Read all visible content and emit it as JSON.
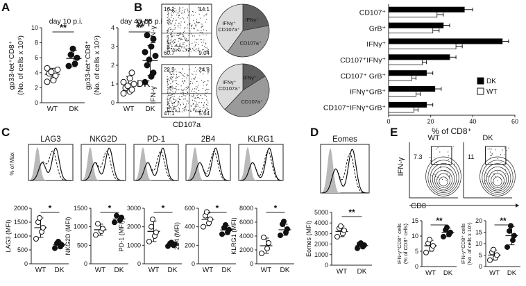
{
  "panel_letters": {
    "A": "A",
    "B": "B",
    "C": "C",
    "D": "D",
    "E": "E"
  },
  "chart_data": [
    {
      "id": "A1",
      "type": "scatter-dot",
      "title": "day 10 p.i.",
      "ylabel": "gp33-tet⁺CD8⁺ (No. of cells x 10⁶)",
      "categories": [
        "WT",
        "DK"
      ],
      "ylim": [
        0,
        10
      ],
      "yticks": [
        0,
        2,
        4,
        6,
        8,
        10
      ],
      "significance": "**",
      "groups": [
        {
          "name": "WT",
          "marker": "open",
          "mean": 3.8,
          "sd": 0.8,
          "values": [
            2.8,
            3.2,
            3.6,
            3.9,
            4.1,
            4.4,
            4.6,
            3.0
          ]
        },
        {
          "name": "DK",
          "marker": "filled",
          "mean": 5.9,
          "sd": 1.1,
          "values": [
            4.9,
            5.2,
            6.0,
            6.4,
            7.2
          ]
        }
      ]
    },
    {
      "id": "A2",
      "type": "scatter-dot",
      "title": "day 45-55 p.i.",
      "ylabel": "gp33-tet⁺CD8⁺ (No. of cells x 10⁵)",
      "categories": [
        "WT",
        "DK"
      ],
      "ylim": [
        0,
        4
      ],
      "yticks": [
        0,
        1,
        2,
        3,
        4
      ],
      "significance": "**",
      "groups": [
        {
          "name": "WT",
          "marker": "open",
          "mean": 1.0,
          "sd": 0.4,
          "values": [
            0.5,
            0.6,
            0.7,
            0.8,
            0.9,
            1.0,
            1.1,
            1.3,
            1.6
          ]
        },
        {
          "name": "DK",
          "marker": "filled",
          "mean": 2.25,
          "sd": 0.8,
          "values": [
            1.1,
            1.4,
            1.6,
            2.0,
            2.3,
            2.5,
            2.7,
            3.0,
            3.4,
            3.6
          ]
        }
      ]
    },
    {
      "id": "B-flow",
      "type": "flow-quadrant",
      "xlabel": "CD107a",
      "ylabel": "IFN-γ",
      "rows": [
        {
          "label": "WT",
          "quadrants": {
            "ul": "16.1",
            "ur": "14.1",
            "ll": "60.7",
            "lr": "9.04"
          }
        },
        {
          "label": "DK",
          "quadrants": {
            "ul": "22.5",
            "ur": "24.8",
            "ll": "47.1",
            "lr": "5.64"
          }
        }
      ]
    },
    {
      "id": "B-pie",
      "type": "pie",
      "rows": [
        {
          "label": "WT",
          "slices": [
            {
              "name": "IFNγ⁺",
              "value": 22,
              "color": "#5f5f5f"
            },
            {
              "name": "CD107a⁺",
              "value": 38,
              "color": "#9a9a9a"
            },
            {
              "name": "IFNγ⁺ CD107a⁺",
              "value": 40,
              "color": "#dcdcdc"
            }
          ]
        },
        {
          "label": "DK",
          "slices": [
            {
              "name": "IFNγ⁺",
              "value": 16,
              "color": "#5f5f5f"
            },
            {
              "name": "CD107a⁺",
              "value": 46,
              "color": "#9a9a9a"
            },
            {
              "name": "IFNγ⁺ CD107a⁺",
              "value": 38,
              "color": "#dcdcdc"
            }
          ]
        }
      ]
    },
    {
      "id": "B-bar",
      "type": "bar",
      "orientation": "horizontal",
      "xlabel": "% of CD8⁺",
      "xlim": [
        0,
        60
      ],
      "xticks": [
        0,
        20,
        40,
        60
      ],
      "categories": [
        "CD107⁺",
        "GrB⁺",
        "IFNγ⁺",
        "CD107⁺IFNγ⁺",
        "CD107⁺ GrB⁺",
        "IFNγ⁺GrB⁺",
        "CD107⁺IFNγ⁺GrB⁺"
      ],
      "series": [
        {
          "name": "DK",
          "color": "#000000",
          "values": [
            36,
            26,
            54,
            29,
            18,
            22,
            18
          ],
          "err": [
            4,
            3,
            3,
            3,
            3,
            3,
            3
          ]
        },
        {
          "name": "WT",
          "color": "#ffffff",
          "values": [
            23,
            21,
            32,
            16,
            11,
            13,
            12
          ],
          "err": [
            3,
            3,
            3,
            2,
            2,
            2,
            2
          ]
        }
      ]
    },
    {
      "id": "C-hist",
      "type": "histogram-overlay",
      "ylabel": "% of Max",
      "panels": [
        "LAG3",
        "NKG2D",
        "PD-1",
        "2B4",
        "KLRG1"
      ]
    },
    {
      "id": "C-LAG3",
      "type": "scatter-dot",
      "ylabel": "LAG3 (MFI)",
      "categories": [
        "WT",
        "DK"
      ],
      "ylim": [
        0,
        2000
      ],
      "yticks": [
        0,
        500,
        1000,
        1500,
        2000
      ],
      "significance": "*",
      "groups": [
        {
          "name": "WT",
          "marker": "open",
          "mean": 1300,
          "sd": 350,
          "values": [
            900,
            1150,
            1300,
            1500,
            1650
          ]
        },
        {
          "name": "DK",
          "marker": "filled",
          "mean": 680,
          "sd": 120,
          "values": [
            560,
            620,
            680,
            740,
            800
          ]
        }
      ]
    },
    {
      "id": "C-NKG2D",
      "type": "scatter-dot",
      "ylabel": "NKG2D (MFI)",
      "categories": [
        "WT",
        "DK"
      ],
      "ylim": [
        0,
        1500
      ],
      "yticks": [
        0,
        500,
        1000,
        1500
      ],
      "significance": "*",
      "groups": [
        {
          "name": "WT",
          "marker": "open",
          "mean": 920,
          "sd": 150,
          "values": [
            780,
            880,
            950,
            1080
          ]
        },
        {
          "name": "DK",
          "marker": "filled",
          "mean": 1210,
          "sd": 90,
          "values": [
            1120,
            1180,
            1250,
            1300
          ]
        }
      ]
    },
    {
      "id": "C-PD1",
      "type": "scatter-dot",
      "ylabel": "PD-1 (MFI)",
      "categories": [
        "WT",
        "DK"
      ],
      "ylim": [
        0,
        3000
      ],
      "yticks": [
        0,
        1000,
        2000,
        3000
      ],
      "significance": "*",
      "groups": [
        {
          "name": "WT",
          "marker": "open",
          "mean": 1750,
          "sd": 550,
          "values": [
            1200,
            1500,
            1700,
            2000,
            2400
          ]
        },
        {
          "name": "DK",
          "marker": "filled",
          "mean": 1050,
          "sd": 100,
          "values": [
            950,
            1000,
            1060,
            1100,
            1150
          ]
        }
      ]
    },
    {
      "id": "C-2B4",
      "type": "scatter-dot",
      "ylabel": "2B4 (MFI)",
      "categories": [
        "WT",
        "DK"
      ],
      "ylim": [
        0,
        600
      ],
      "yticks": [
        0,
        200,
        400,
        600
      ],
      "significance": "*",
      "groups": [
        {
          "name": "WT",
          "marker": "open",
          "mean": 480,
          "sd": 70,
          "values": [
            400,
            440,
            480,
            520,
            560
          ]
        },
        {
          "name": "DK",
          "marker": "filled",
          "mean": 365,
          "sd": 50,
          "values": [
            320,
            340,
            370,
            390,
            420
          ]
        }
      ]
    },
    {
      "id": "C-KLRG1",
      "type": "scatter-dot",
      "ylabel": "KLRG1 (MFI)",
      "categories": [
        "WT",
        "DK"
      ],
      "ylim": [
        0,
        8000
      ],
      "yticks": [
        0,
        2000,
        4000,
        6000,
        8000
      ],
      "significance": "*",
      "groups": [
        {
          "name": "WT",
          "marker": "open",
          "mean": 2600,
          "sd": 1100,
          "values": [
            1500,
            2200,
            3000,
            3800
          ]
        },
        {
          "name": "DK",
          "marker": "filled",
          "mean": 4900,
          "sd": 800,
          "values": [
            4100,
            4500,
            5000,
            5700,
            6100
          ]
        }
      ]
    },
    {
      "id": "D-hist",
      "type": "histogram-overlay",
      "panels": [
        "Eomes"
      ]
    },
    {
      "id": "D-Eomes",
      "type": "scatter-dot",
      "ylabel": "Eomes (MFI)",
      "categories": [
        "WT",
        "DK"
      ],
      "ylim": [
        0,
        5000
      ],
      "yticks": [
        0,
        1000,
        2000,
        3000,
        4000,
        5000
      ],
      "significance": "**",
      "groups": [
        {
          "name": "WT",
          "marker": "open",
          "mean": 3200,
          "sd": 500,
          "values": [
            2700,
            3000,
            3300,
            3500,
            3700
          ]
        },
        {
          "name": "DK",
          "marker": "filled",
          "mean": 1850,
          "sd": 250,
          "values": [
            1600,
            1750,
            1900,
            2000,
            2100
          ]
        }
      ]
    },
    {
      "id": "E-flow",
      "type": "flow-contour",
      "xlabel": "CD8",
      "ylabel": "IFN-γ",
      "panels": [
        {
          "label": "WT",
          "gate": "7.3"
        },
        {
          "label": "DK",
          "gate": "11"
        }
      ]
    },
    {
      "id": "E-pct",
      "type": "scatter-dot",
      "ylabel": "IFN-γ⁺CD8⁺ cells (% of CD8⁺ cells)",
      "categories": [
        "WT",
        "DK"
      ],
      "ylim": [
        0,
        15
      ],
      "yticks": [
        0,
        5,
        10,
        15
      ],
      "significance": "**",
      "groups": [
        {
          "name": "WT",
          "marker": "open",
          "mean": 6.8,
          "sd": 1.8,
          "values": [
            4.6,
            5.8,
            6.8,
            7.6,
            8.8
          ]
        },
        {
          "name": "DK",
          "marker": "filled",
          "mean": 11.2,
          "sd": 1.4,
          "values": [
            9.8,
            10.5,
            11.2,
            12.0,
            12.8
          ]
        }
      ]
    },
    {
      "id": "E-num",
      "type": "scatter-dot",
      "ylabel": "IFN-γ⁺CD8⁺ cells (No. of cells x 10⁵)",
      "categories": [
        "WT",
        "DK"
      ],
      "ylim": [
        0,
        20
      ],
      "yticks": [
        0,
        5,
        10,
        15,
        20
      ],
      "significance": "**",
      "groups": [
        {
          "name": "WT",
          "marker": "open",
          "mean": 5.0,
          "sd": 2.2,
          "values": [
            2.8,
            3.8,
            5.0,
            6.2,
            7.4
          ]
        },
        {
          "name": "DK",
          "marker": "filled",
          "mean": 13.5,
          "sd": 4.0,
          "values": [
            8.5,
            11.5,
            13.5,
            15.5,
            17.8
          ]
        }
      ]
    }
  ]
}
